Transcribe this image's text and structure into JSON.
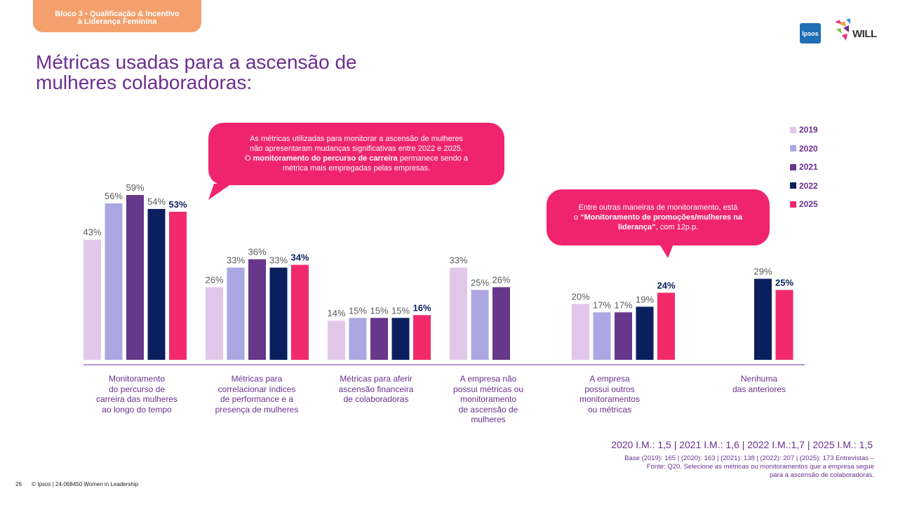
{
  "header": {
    "tag_line1": "Bloco 3 • Qualificação & Incentivo",
    "tag_line2": "à Liderança Feminina",
    "logo_ipsos": "Ipsos",
    "logo_will": "WILL"
  },
  "title": {
    "line1": "Métricas usadas para a ascensão de",
    "line2": "mulheres colaboradoras:"
  },
  "callouts": {
    "top": {
      "line1": "As métricas utilizadas para monitorar a ascensão de mulheres",
      "line2": "não apresentaram mudanças significativas entre 2022 e 2025.",
      "line3_pre": "O ",
      "line3_bold": "monitoramento do percurso de carreira",
      "line3_post": " permanece sendo a",
      "line4": "métrica mais empregadas pelas empresas."
    },
    "right": {
      "line1": "Entre outras maneiras de monitoramento, está",
      "line2_pre": "o ",
      "line2_bold": "“Monitoramento de promoções/mulheres na",
      "line3_bold": "liderança”",
      "line3_post": ", com 12p.p."
    }
  },
  "chart_data": {
    "type": "bar",
    "series": [
      {
        "name": "2019",
        "color": "#e2c7ea",
        "values": [
          43,
          26,
          14,
          33,
          20,
          null
        ]
      },
      {
        "name": "2020",
        "color": "#aaa7e2",
        "values": [
          56,
          33,
          15,
          25,
          17,
          null
        ]
      },
      {
        "name": "2021",
        "color": "#66378a",
        "values": [
          59,
          36,
          15,
          26,
          17,
          null
        ]
      },
      {
        "name": "2022",
        "color": "#0b1f5e",
        "values": [
          54,
          33,
          15,
          null,
          19,
          29
        ]
      },
      {
        "name": "2025",
        "color": "#f22a6c",
        "values": [
          53,
          34,
          16,
          null,
          24,
          25
        ]
      }
    ],
    "categories": [
      [
        "Monitoramento",
        "do percurso  de",
        "carreira das mulheres",
        "ao longo do tempo"
      ],
      [
        "Métricas para",
        "correlacionar índices",
        "de performance e a",
        "presença de mulheres"
      ],
      [
        "Métricas para aferir",
        "ascensão financeira",
        "de colaboradoras"
      ],
      [
        "A empresa não",
        "possui métricas ou",
        "monitoramento",
        "de ascensão de",
        "mulheres"
      ],
      [
        "A empresa",
        "possui outros",
        "monitoramentos",
        "ou métricas"
      ],
      [
        "Nenhuma",
        "das anteriores"
      ]
    ],
    "value_suffix": "%",
    "ylim": [
      0,
      60
    ],
    "grid": false,
    "legend_position": "right"
  },
  "notes": {
    "im": "2020 I.M.: 1,5 | 2021 I.M.: 1,6 | 2022 I.M.:1,7 | 2025 I.M.: 1,5",
    "base_line1": "Base (2019): 165 | (2020): 163 | (2021): 138 | (2022): 207 | (2025): 173  Entrevistas –",
    "base_line2": "Fonte: Q20. Selecione as métricas ou monitoramentos que a empresa segue",
    "base_line3": "para a ascensão de colaboradoras."
  },
  "footer": {
    "page": "26",
    "text": "© Ipsos | 24-068450 Women in Leadership"
  }
}
